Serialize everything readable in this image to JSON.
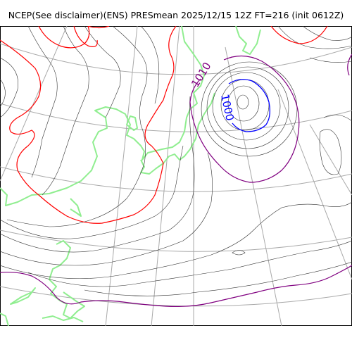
{
  "title": "NCEP(See disclaimer)(ENS) PRESmean 2025/12/15 12Z FT=216 (init 0612Z)",
  "contour_labels": [
    {
      "text": "1010",
      "color": "#800080"
    },
    {
      "text": "1000",
      "color": "#0000ff"
    }
  ],
  "colors": {
    "isobar_thin": "#333333",
    "isobar_1020": "#ff0000",
    "isobar_1010": "#800080",
    "isobar_1000": "#0000ff",
    "coastline": "#90ee90",
    "graticule": "#a9a9a9"
  }
}
